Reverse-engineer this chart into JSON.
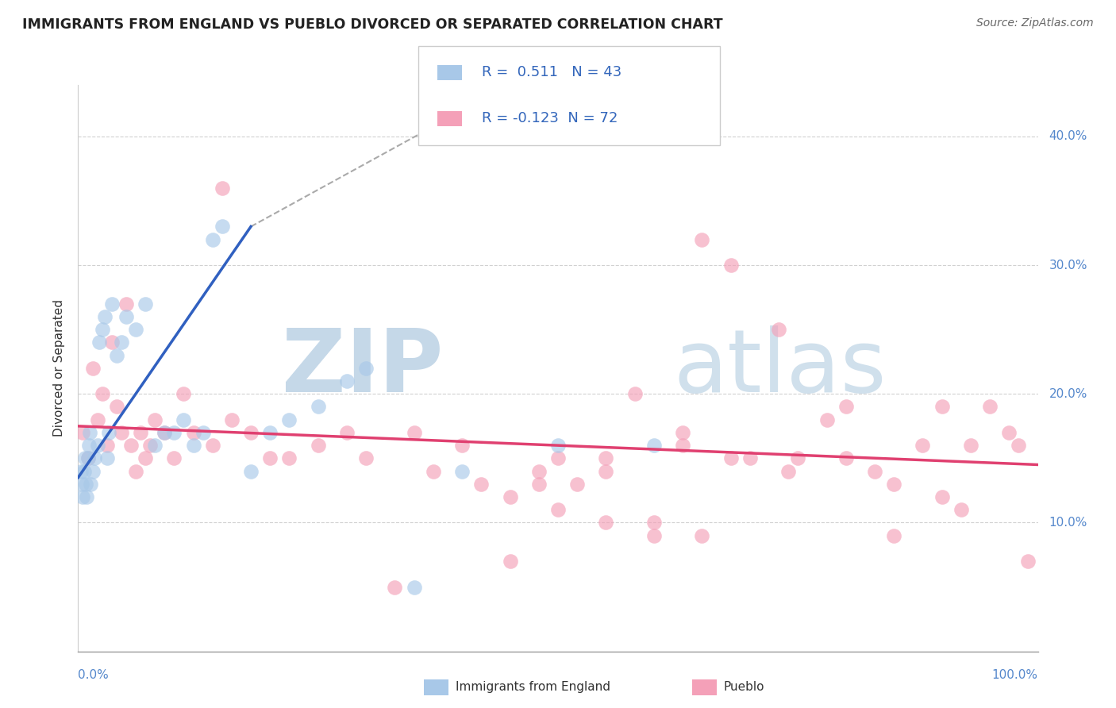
{
  "title": "IMMIGRANTS FROM ENGLAND VS PUEBLO DIVORCED OR SEPARATED CORRELATION CHART",
  "source": "Source: ZipAtlas.com",
  "ylabel": "Divorced or Separated",
  "legend_label1": "Immigrants from England",
  "legend_label2": "Pueblo",
  "r1": 0.511,
  "n1": 43,
  "r2": -0.123,
  "n2": 72,
  "xlim": [
    0.0,
    100.0
  ],
  "ylim": [
    0.0,
    44.0
  ],
  "ytick_vals": [
    10.0,
    20.0,
    30.0,
    40.0
  ],
  "color_blue": "#a8c8e8",
  "color_pink": "#f4a0b8",
  "color_blue_line": "#3060c0",
  "color_pink_line": "#e04070",
  "watermark_zip_color": "#b8cfe0",
  "watermark_atlas_color": "#c8dce8",
  "blue_x": [
    0.3,
    0.4,
    0.5,
    0.6,
    0.7,
    0.8,
    0.9,
    1.0,
    1.1,
    1.2,
    1.3,
    1.5,
    1.7,
    2.0,
    2.2,
    2.5,
    2.8,
    3.2,
    3.5,
    4.0,
    4.5,
    5.0,
    6.0,
    7.0,
    8.0,
    9.0,
    10.0,
    11.0,
    12.0,
    13.0,
    14.0,
    15.0,
    18.0,
    20.0,
    22.0,
    25.0,
    28.0,
    30.0,
    35.0,
    40.0,
    50.0,
    60.0,
    3.0
  ],
  "blue_y": [
    14.0,
    13.0,
    12.0,
    14.0,
    15.0,
    13.0,
    12.0,
    15.0,
    16.0,
    17.0,
    13.0,
    14.0,
    15.0,
    16.0,
    24.0,
    25.0,
    26.0,
    17.0,
    27.0,
    23.0,
    24.0,
    26.0,
    25.0,
    27.0,
    16.0,
    17.0,
    17.0,
    18.0,
    16.0,
    17.0,
    32.0,
    33.0,
    14.0,
    17.0,
    18.0,
    19.0,
    21.0,
    22.0,
    5.0,
    14.0,
    16.0,
    16.0,
    15.0
  ],
  "pink_x": [
    0.5,
    1.0,
    1.5,
    2.0,
    2.5,
    3.0,
    3.5,
    4.0,
    4.5,
    5.0,
    5.5,
    6.0,
    6.5,
    7.0,
    7.5,
    8.0,
    9.0,
    10.0,
    11.0,
    12.0,
    14.0,
    15.0,
    16.0,
    18.0,
    20.0,
    22.0,
    25.0,
    28.0,
    30.0,
    33.0,
    35.0,
    37.0,
    40.0,
    42.0,
    45.0,
    48.0,
    50.0,
    52.0,
    55.0,
    58.0,
    60.0,
    63.0,
    65.0,
    68.0,
    70.0,
    73.0,
    75.0,
    78.0,
    80.0,
    83.0,
    85.0,
    88.0,
    90.0,
    92.0,
    93.0,
    95.0,
    97.0,
    98.0,
    99.0,
    60.0,
    65.0,
    55.0,
    50.0,
    45.0,
    48.0,
    55.0,
    63.0,
    68.0,
    74.0,
    80.0,
    85.0,
    90.0
  ],
  "pink_y": [
    17.0,
    15.0,
    22.0,
    18.0,
    20.0,
    16.0,
    24.0,
    19.0,
    17.0,
    27.0,
    16.0,
    14.0,
    17.0,
    15.0,
    16.0,
    18.0,
    17.0,
    15.0,
    20.0,
    17.0,
    16.0,
    36.0,
    18.0,
    17.0,
    15.0,
    15.0,
    16.0,
    17.0,
    15.0,
    5.0,
    17.0,
    14.0,
    16.0,
    13.0,
    7.0,
    14.0,
    15.0,
    13.0,
    15.0,
    20.0,
    10.0,
    17.0,
    32.0,
    30.0,
    15.0,
    25.0,
    15.0,
    18.0,
    19.0,
    14.0,
    9.0,
    16.0,
    19.0,
    11.0,
    16.0,
    19.0,
    17.0,
    16.0,
    7.0,
    9.0,
    9.0,
    10.0,
    11.0,
    12.0,
    13.0,
    14.0,
    16.0,
    15.0,
    14.0,
    15.0,
    13.0,
    12.0
  ],
  "blue_line_x0": 0.0,
  "blue_line_y0": 13.5,
  "blue_line_x1": 18.0,
  "blue_line_y1": 33.0,
  "blue_dash_x0": 18.0,
  "blue_dash_y0": 33.0,
  "blue_dash_x1": 40.0,
  "blue_dash_y1": 42.0,
  "pink_line_x0": 0.0,
  "pink_line_y0": 17.5,
  "pink_line_x1": 100.0,
  "pink_line_y1": 14.5
}
